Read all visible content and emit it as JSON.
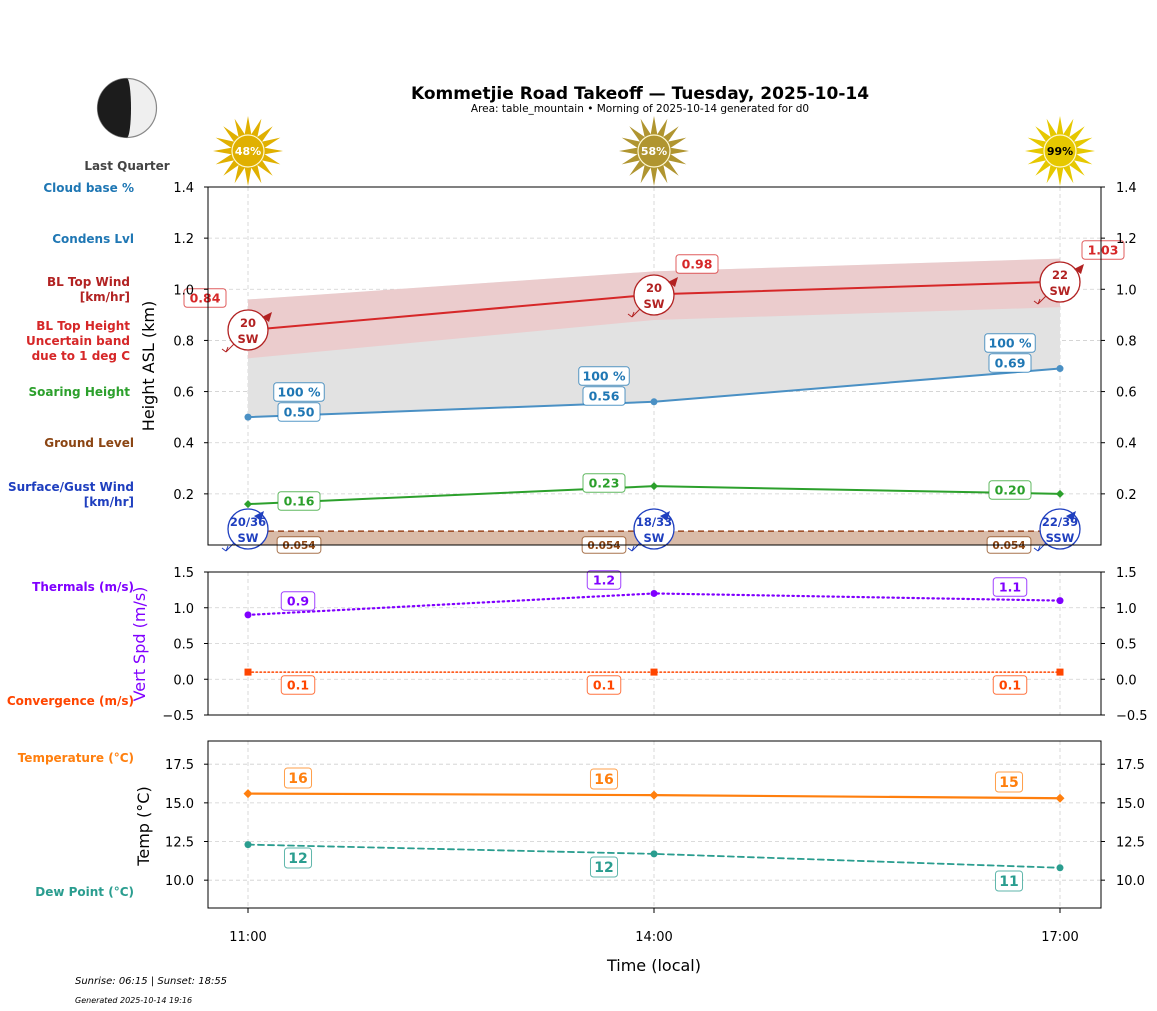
{
  "header": {
    "title": "Kommetjie Road Takeoff — Tuesday, 2025-10-14",
    "subtitle": "Area: table_mountain • Morning of 2025-10-14 generated for d0"
  },
  "moon": {
    "phase": "Last Quarter",
    "icon": "moon-last-quarter-icon"
  },
  "footer": {
    "sun_times": "Sunrise: 06:15 | Sunset: 18:55",
    "generated": "Generated 2025-10-14 19:16"
  },
  "side_labels": {
    "cloud_base": "Cloud base %",
    "condens": "Condens Lvl",
    "bl_wind_1": "BL Top Wind",
    "bl_wind_2": "[km/hr]",
    "bl_height_1": "BL Top Height",
    "bl_height_2": "Uncertain band",
    "bl_height_3": "due to 1 deg C",
    "soaring": "Soaring Height",
    "ground": "Ground Level",
    "surface_1": "Surface/Gust Wind",
    "surface_2": "[km/hr]",
    "thermals": "Thermals (m/s)",
    "convergence": "Convergence (m/s)",
    "temperature": "Temperature (°C)",
    "dewpoint": "Dew Point (°C)"
  },
  "colors": {
    "cloud": "#1f77b4",
    "bl": "#d62728",
    "bl_dark": "#b22222",
    "soaring": "#2ca02c",
    "ground": "#8b4513",
    "surface": "#1f3fbf",
    "thermals": "#8000ff",
    "convergence": "#ff4500",
    "temperature": "#ff7f0e",
    "dewpoint": "#2a9d8f"
  },
  "chart_data": [
    {
      "type": "line",
      "title": "Heights",
      "xlabel": "Time (local)",
      "ylabel": "Height ASL (km)",
      "x": [
        "11:00",
        "14:00",
        "17:00"
      ],
      "ylim": [
        0,
        1.4
      ],
      "yticks": [
        0.2,
        0.4,
        0.6,
        0.8,
        1.0,
        1.2,
        1.4
      ],
      "grid": true,
      "sun_cloud_pct": [
        "48%",
        "58%",
        "99%"
      ],
      "series": [
        {
          "name": "BL Top Height",
          "values": [
            0.84,
            0.98,
            1.03
          ],
          "labels": [
            "0.84",
            "0.98",
            "1.03"
          ],
          "band_upper": [
            0.96,
            1.07,
            1.12
          ],
          "band_lower": [
            0.73,
            0.88,
            0.93
          ]
        },
        {
          "name": "Condens Lvl",
          "values": [
            0.5,
            0.56,
            0.69
          ],
          "labels": [
            "0.50",
            "0.56",
            "0.69"
          ],
          "cloud_base_pct": [
            "100 %",
            "100 %",
            "100 %"
          ]
        },
        {
          "name": "Soaring Height",
          "values": [
            0.16,
            0.23,
            0.2
          ],
          "labels": [
            "0.16",
            "0.23",
            "0.20"
          ]
        },
        {
          "name": "Ground Level",
          "values": [
            0.054,
            0.054,
            0.054
          ],
          "labels": [
            "0.054",
            "0.054",
            "0.054"
          ]
        }
      ],
      "bl_top_wind": [
        {
          "speed": "20",
          "dir": "SW"
        },
        {
          "speed": "20",
          "dir": "SW"
        },
        {
          "speed": "22",
          "dir": "SW"
        }
      ],
      "surface_wind": [
        {
          "speed": "20/36",
          "dir": "SW"
        },
        {
          "speed": "18/33",
          "dir": "SW"
        },
        {
          "speed": "22/39",
          "dir": "SSW"
        }
      ]
    },
    {
      "type": "line",
      "title": "Vertical speed",
      "ylabel": "Vert Spd (m/s)",
      "x": [
        "11:00",
        "14:00",
        "17:00"
      ],
      "ylim": [
        -0.5,
        1.5
      ],
      "yticks": [
        -0.5,
        0.0,
        0.5,
        1.0,
        1.5
      ],
      "ytick_labels": [
        "−0.5",
        "0.0",
        "0.5",
        "1.0",
        "1.5"
      ],
      "grid": true,
      "series": [
        {
          "name": "Thermals (m/s)",
          "values": [
            0.9,
            1.2,
            1.1
          ],
          "labels": [
            "0.9",
            "1.2",
            "1.1"
          ]
        },
        {
          "name": "Convergence (m/s)",
          "values": [
            0.1,
            0.1,
            0.1
          ],
          "labels": [
            "0.1",
            "0.1",
            "0.1"
          ]
        }
      ]
    },
    {
      "type": "line",
      "title": "Temperature",
      "ylabel": "Temp (°C)",
      "x": [
        "11:00",
        "14:00",
        "17:00"
      ],
      "ylim": [
        8.2,
        19.0
      ],
      "yticks": [
        10.0,
        12.5,
        15.0,
        17.5
      ],
      "ytick_labels": [
        "10.0",
        "12.5",
        "15.0",
        "17.5"
      ],
      "grid": true,
      "series": [
        {
          "name": "Temperature (°C)",
          "values": [
            15.6,
            15.5,
            15.3
          ],
          "labels": [
            "16",
            "16",
            "15"
          ]
        },
        {
          "name": "Dew Point (°C)",
          "values": [
            12.3,
            11.7,
            10.8
          ],
          "labels": [
            "12",
            "12",
            "11"
          ]
        }
      ]
    }
  ]
}
